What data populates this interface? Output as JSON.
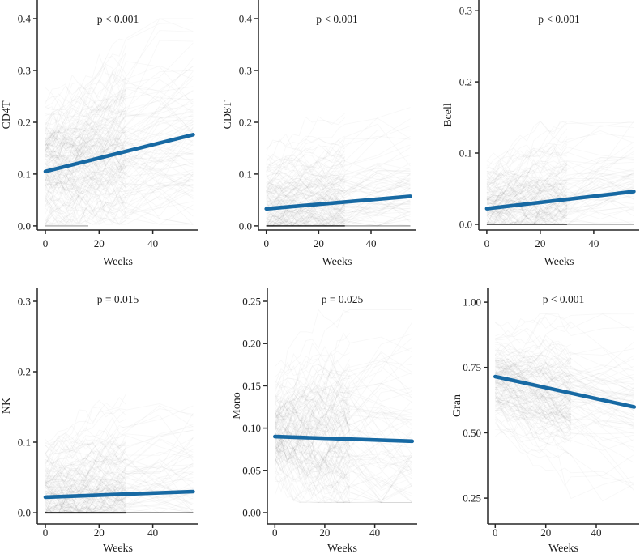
{
  "figure": {
    "title": "",
    "xlabel": "Weeks",
    "background_color": "#ffffff",
    "trend_color": "#1769a3",
    "axis_color": "#262626",
    "spaghetti_color": "#000000",
    "x_ticks": [
      0,
      20,
      40
    ],
    "x_tick_labels": [
      "0",
      "20",
      "40"
    ],
    "xlim": [
      -3,
      57
    ]
  },
  "chart_data": [
    {
      "type": "line",
      "title": "p < 0.001",
      "ylabel": "CD4T",
      "xlabel": "Weeks",
      "x_ticks": [
        0,
        20,
        40
      ],
      "xlim": [
        -3,
        57
      ],
      "ylim": [
        -0.008,
        0.436
      ],
      "y_tick_values": [
        0.0,
        0.1,
        0.2,
        0.3,
        0.4
      ],
      "y_tick_labels": [
        "0.0",
        "0.1",
        "0.2",
        "0.3",
        "0.4"
      ],
      "trend": {
        "x": [
          0,
          55
        ],
        "y": [
          0.105,
          0.176
        ]
      },
      "zero_bands": [
        {
          "x0": 0,
          "x1": 16,
          "opacity": 0.28,
          "width": 1.5
        }
      ],
      "background_lines": {
        "count": 170,
        "seed": 7,
        "mean": 0.115,
        "sd": 0.065,
        "step_sd": 0.018,
        "min": 0.003,
        "max": 0.4,
        "zero_frac": 0.0,
        "follow_frac": 0.5,
        "opacity": 0.032
      }
    },
    {
      "type": "line",
      "title": "p < 0.001",
      "ylabel": "CD8T",
      "xlabel": "Weeks",
      "x_ticks": [
        0,
        20,
        40
      ],
      "xlim": [
        -3,
        57
      ],
      "ylim": [
        -0.008,
        0.436
      ],
      "y_tick_values": [
        0.0,
        0.1,
        0.2,
        0.3,
        0.4
      ],
      "y_tick_labels": [
        "0.0",
        "0.1",
        "0.2",
        "0.3",
        "0.4"
      ],
      "trend": {
        "x": [
          0,
          55
        ],
        "y": [
          0.033,
          0.057
        ]
      },
      "zero_bands": [
        {
          "x0": 0,
          "x1": 30,
          "opacity": 0.6,
          "width": 1.8
        },
        {
          "x0": 30,
          "x1": 55,
          "opacity": 0.28,
          "width": 1.3
        }
      ],
      "background_lines": {
        "count": 155,
        "seed": 13,
        "mean": 0.05,
        "sd": 0.042,
        "step_sd": 0.012,
        "min": 0.0,
        "max": 0.26,
        "zero_frac": 0.1,
        "follow_frac": 0.5,
        "opacity": 0.032
      }
    },
    {
      "type": "line",
      "title": "p < 0.001",
      "ylabel": "Bcell",
      "xlabel": "Weeks",
      "x_ticks": [
        0,
        20,
        40
      ],
      "xlim": [
        -3,
        57
      ],
      "ylim": [
        -0.008,
        0.315
      ],
      "y_tick_values": [
        0.0,
        0.1,
        0.2,
        0.3
      ],
      "y_tick_labels": [
        "0.0",
        "0.1",
        "0.2",
        "0.3"
      ],
      "trend": {
        "x": [
          0,
          55
        ],
        "y": [
          0.022,
          0.046
        ]
      },
      "zero_bands": [
        {
          "x0": 0,
          "x1": 30,
          "opacity": 0.55,
          "width": 1.7
        },
        {
          "x0": 30,
          "x1": 55,
          "opacity": 0.26,
          "width": 1.2
        }
      ],
      "background_lines": {
        "count": 155,
        "seed": 21,
        "mean": 0.032,
        "sd": 0.028,
        "step_sd": 0.009,
        "min": 0.0,
        "max": 0.145,
        "zero_frac": 0.12,
        "follow_frac": 0.5,
        "opacity": 0.032
      }
    },
    {
      "type": "line",
      "title": "p = 0.015",
      "ylabel": "NK",
      "xlabel": "Weeks",
      "x_ticks": [
        0,
        20,
        40
      ],
      "xlim": [
        -3,
        57
      ],
      "ylim": [
        -0.016,
        0.3195
      ],
      "y_tick_values": [
        0.0,
        0.1,
        0.2,
        0.3
      ],
      "y_tick_labels": [
        "0.0",
        "0.1",
        "0.2",
        "0.3"
      ],
      "trend": {
        "x": [
          0,
          55
        ],
        "y": [
          0.022,
          0.03
        ]
      },
      "zero_bands": [
        {
          "x0": 0,
          "x1": 30,
          "opacity": 0.8,
          "width": 2.0
        },
        {
          "x0": 30,
          "x1": 55,
          "opacity": 0.5,
          "width": 1.5
        }
      ],
      "background_lines": {
        "count": 150,
        "seed": 33,
        "mean": 0.032,
        "sd": 0.035,
        "step_sd": 0.011,
        "min": 0.0,
        "max": 0.28,
        "zero_frac": 0.12,
        "follow_frac": 0.5,
        "opacity": 0.032
      }
    },
    {
      "type": "line",
      "title": "p = 0.025",
      "ylabel": "Mono",
      "xlabel": "Weeks",
      "x_ticks": [
        0,
        20,
        40
      ],
      "xlim": [
        -3,
        57
      ],
      "ylim": [
        -0.0134,
        0.2663
      ],
      "y_tick_values": [
        0.0,
        0.05,
        0.1,
        0.15,
        0.2,
        0.25
      ],
      "y_tick_labels": [
        "0.00",
        "0.05",
        "0.10",
        "0.15",
        "0.20",
        "0.25"
      ],
      "trend": {
        "x": [
          0,
          55
        ],
        "y": [
          0.09,
          0.0845
        ]
      },
      "zero_bands": [],
      "background_lines": {
        "count": 150,
        "seed": 41,
        "mean": 0.092,
        "sd": 0.031,
        "step_sd": 0.013,
        "min": 0.012,
        "max": 0.24,
        "zero_frac": 0.0,
        "follow_frac": 0.5,
        "opacity": 0.032
      }
    },
    {
      "type": "line",
      "title": "p < 0.001",
      "ylabel": "Gran",
      "xlabel": "Weeks",
      "x_ticks": [
        0,
        20,
        40
      ],
      "xlim": [
        -3,
        57
      ],
      "ylim": [
        0.151,
        1.056
      ],
      "y_tick_values": [
        0.25,
        0.5,
        0.75,
        1.0
      ],
      "y_tick_labels": [
        "0.25",
        "0.50",
        "0.75",
        "1.00"
      ],
      "trend": {
        "x": [
          0,
          55
        ],
        "y": [
          0.715,
          0.599
        ]
      },
      "zero_bands": [],
      "background_lines": {
        "count": 150,
        "seed": 55,
        "mean": 0.71,
        "sd": 0.085,
        "step_sd": 0.024,
        "min": 0.225,
        "max": 0.955,
        "zero_frac": 0.0,
        "follow_frac": 0.5,
        "opacity": 0.032
      }
    }
  ]
}
